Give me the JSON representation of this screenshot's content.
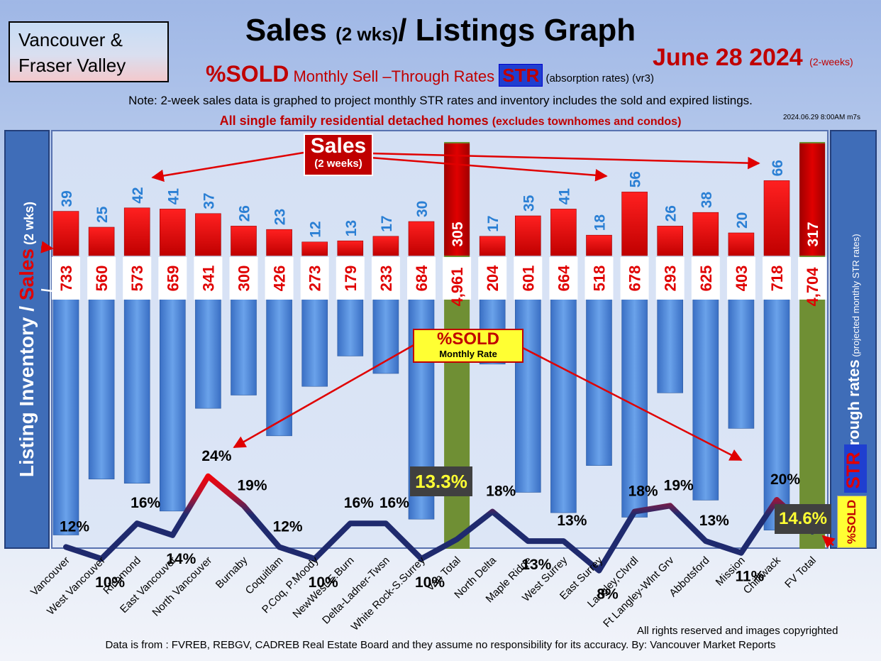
{
  "header": {
    "region_line1": "Vancouver &",
    "region_line2": "Fraser Valley",
    "title_main": "Sales ",
    "title_small": "(2 wks)",
    "title_end": "/ Listings Graph",
    "date": "June 28  2024",
    "date_suffix": "(2-weeks)",
    "subtitle_sold": "%SOLD",
    "subtitle_rates": " Monthly Sell –Through Rates ",
    "subtitle_str": "STR",
    "subtitle_absorption": "   (absorption rates) (vr3)",
    "note": "Note: 2-week sales data is graphed to project monthly STR rates and inventory includes the sold and expired listings.",
    "subnote": "All single family residential detached homes ",
    "subnote_small": "(excludes townhomes and condos)",
    "timestamp": "2024.06.29 8:00AM m7s"
  },
  "left_axis": {
    "label_a": "Listing Inventory / ",
    "label_b": "Sales",
    "label_c": " (2  wks)"
  },
  "right_axis": {
    "label": "Sell-through rates",
    "label_small": "  (projected monthly STR rates)",
    "str": "STR",
    "pct_sold": "%SOLD"
  },
  "callouts": {
    "sales_a": "Sales",
    "sales_b": "(2 weeks)",
    "sold_a": "%SOLD",
    "sold_b": "Monthly Rate",
    "van_total_pct": "13.3%",
    "fv_total_pct": "14.6%"
  },
  "footer": {
    "rights": "All rights reserved and  images copyrighted",
    "source": "Data is from : FVREB, REBGV, CADREB Real Estate Board and they assume no responsibility for its accuracy. By: Vancouver Market Reports"
  },
  "colors": {
    "sales_bar": "#e00000",
    "inventory_bar": "#4a86d8",
    "total_bar": "#6f8f34",
    "str_line_high": "#ff0000",
    "str_line_low": "#1f2a6e"
  },
  "chart_data": {
    "type": "bar",
    "categories": [
      "Vancouver",
      "West Vancouver",
      "Richmond",
      "East Vancouver",
      "North Vancouver",
      "Burnaby",
      "Coquitlam",
      "P.Coq, P.Moody",
      "NewWest-E.Burn",
      "Delta-Ladner-Twsn",
      "White Rock-S.Surrey",
      "Van Total",
      "North Delta",
      "Maple Ridge",
      "West Surrey",
      "East Surrey",
      "Langley,Clvrdl",
      "Ft Langley-Wlnt Grv",
      "Abbotsford",
      "Mission",
      "Chilliwack",
      "FV Total"
    ],
    "series": [
      {
        "name": "Sales",
        "values": [
          39,
          25,
          42,
          41,
          37,
          26,
          23,
          12,
          13,
          17,
          30,
          305,
          17,
          35,
          41,
          18,
          56,
          26,
          38,
          20,
          66,
          317
        ]
      },
      {
        "name": "Listing Inventory",
        "values": [
          "733",
          "560",
          "573",
          "659",
          "341",
          "300",
          "426",
          "273",
          "179",
          "233",
          "684",
          "4,961",
          "204",
          "601",
          "664",
          "518",
          "678",
          "293",
          "625",
          "403",
          "718",
          "4,704"
        ]
      },
      {
        "name": "Sell-through rates",
        "values": [
          "12%",
          "10%",
          "16%",
          "14%",
          "24%",
          "19%",
          "12%",
          "10%",
          "16%",
          "16%",
          "10%",
          "13.3%",
          "18%",
          "13%",
          "13%",
          "8%",
          "18%",
          "19%",
          "13%",
          "11%",
          "20%",
          "14.6%"
        ]
      }
    ],
    "str_numeric": [
      12,
      10,
      16,
      14,
      24,
      19,
      12,
      10,
      16,
      16,
      10,
      13.3,
      18,
      13,
      13,
      8,
      18,
      19,
      13,
      11,
      20,
      14.6
    ],
    "inventory_numeric": [
      733,
      560,
      573,
      659,
      341,
      300,
      426,
      273,
      179,
      233,
      684,
      4961,
      204,
      601,
      664,
      518,
      678,
      293,
      625,
      403,
      718,
      4704
    ],
    "totals_index": [
      11,
      21
    ]
  }
}
